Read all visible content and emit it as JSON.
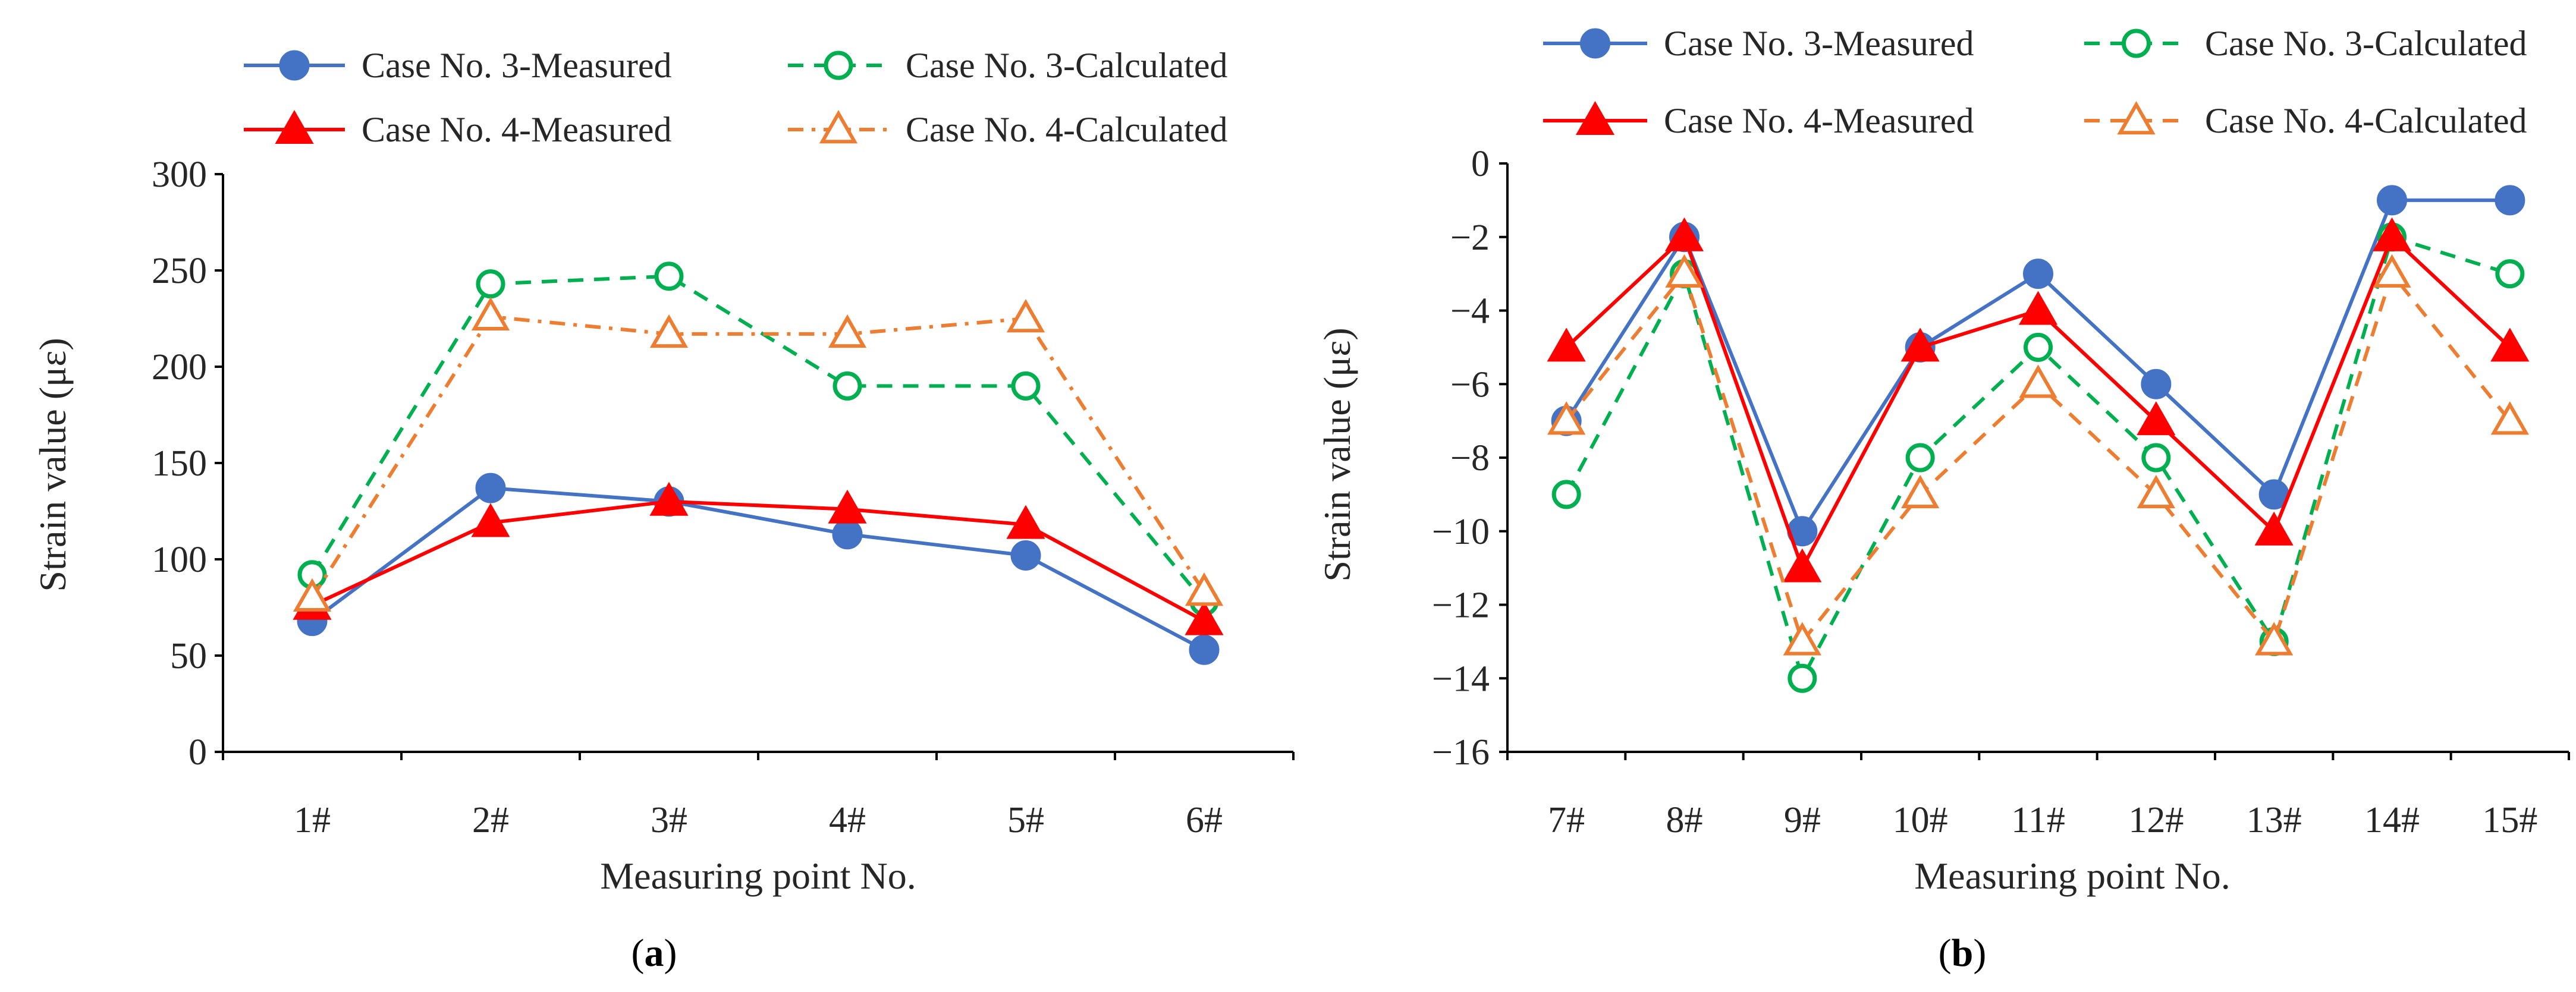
{
  "chart_data": [
    {
      "type": "line",
      "panel_label": "a",
      "categories": [
        "1#",
        "2#",
        "3#",
        "4#",
        "5#",
        "6#"
      ],
      "series": [
        {
          "name": "Case No. 3-Measured",
          "values": [
            68,
            137,
            130,
            113,
            102,
            53
          ],
          "color": "#4472C4",
          "dash": "solid",
          "marker": "circle-filled"
        },
        {
          "name": "Case No. 3-Calculated",
          "values": [
            92,
            243,
            247,
            190,
            190,
            78
          ],
          "color": "#00B050",
          "dash": "dashed",
          "marker": "circle-open"
        },
        {
          "name": "Case No. 4-Measured",
          "values": [
            76,
            119,
            130,
            126,
            118,
            68
          ],
          "color": "#FF0000",
          "dash": "solid",
          "marker": "triangle-filled"
        },
        {
          "name": "Case No. 4-Calculated",
          "values": [
            80,
            226,
            217,
            217,
            225,
            83
          ],
          "color": "#ED7D31",
          "dash": "dashdot",
          "marker": "triangle-open"
        }
      ],
      "xlabel": "Measuring point No.",
      "ylabel": "Strain value (με)",
      "ylim": [
        0,
        300
      ],
      "yticks": [
        "0",
        "50",
        "100",
        "150",
        "200",
        "250",
        "300"
      ],
      "yticks_values": [
        0,
        50,
        100,
        150,
        200,
        250,
        300
      ],
      "legend": "top"
    },
    {
      "type": "line",
      "panel_label": "b",
      "categories": [
        "7#",
        "8#",
        "9#",
        "10#",
        "11#",
        "12#",
        "13#",
        "14#",
        "15#"
      ],
      "series": [
        {
          "name": "Case No. 3-Measured",
          "values": [
            -7,
            -2,
            -10,
            -5,
            -3,
            -6,
            -9,
            -1,
            -1
          ],
          "color": "#4472C4",
          "dash": "solid",
          "marker": "circle-filled"
        },
        {
          "name": "Case No. 3-Calculated",
          "values": [
            -9,
            -3,
            -14,
            -8,
            -5,
            -8,
            -13,
            -2,
            -3
          ],
          "color": "#00B050",
          "dash": "dashed",
          "marker": "circle-open"
        },
        {
          "name": "Case No. 4-Measured",
          "values": [
            -5,
            -2,
            -11,
            -5,
            -4,
            -7,
            -10,
            -2,
            -5
          ],
          "color": "#FF0000",
          "dash": "solid",
          "marker": "triangle-filled"
        },
        {
          "name": "Case No. 4-Calculated",
          "values": [
            -7,
            -3,
            -13,
            -9,
            -6,
            -9,
            -13,
            -3,
            -7
          ],
          "color": "#ED7D31",
          "dash": "dashed",
          "marker": "triangle-open"
        }
      ],
      "xlabel": "Measuring point No.",
      "ylabel": "Strain value (με)",
      "ylim": [
        -16,
        0
      ],
      "yticks": [
        "0",
        "−2",
        "−4",
        "−6",
        "−8",
        "−10",
        "−12",
        "−14",
        "−16"
      ],
      "yticks_values": [
        0,
        -2,
        -4,
        -6,
        -8,
        -10,
        -12,
        -14,
        -16
      ],
      "legend": "top"
    }
  ]
}
